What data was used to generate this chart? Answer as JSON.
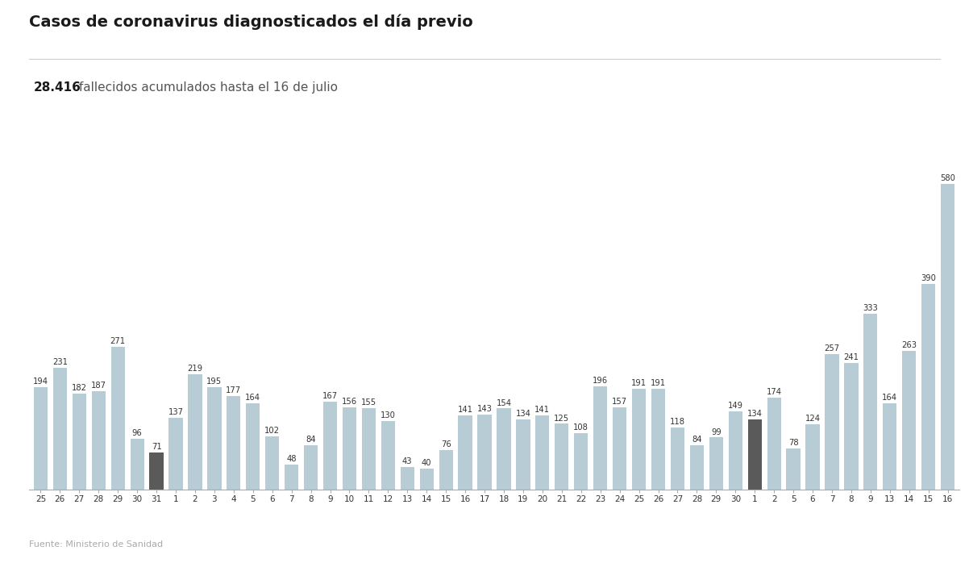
{
  "title": "Casos de coronavirus diagnosticados el día previo",
  "subtitle_bold": "28.416",
  "subtitle_rest": " fallecidos acumulados hasta el 16 de julio",
  "source": "Fuente: Ministerio de Sanidad",
  "labels": [
    "25",
    "26",
    "27",
    "28",
    "29",
    "30",
    "31",
    "1",
    "2",
    "3",
    "4",
    "5",
    "6",
    "7",
    "8",
    "9",
    "10",
    "11",
    "12",
    "13",
    "14",
    "15",
    "16",
    "17",
    "18",
    "19",
    "20",
    "21",
    "22",
    "23",
    "24",
    "25",
    "26",
    "27",
    "28",
    "29",
    "30",
    "1",
    "2",
    "5",
    "6",
    "7",
    "8",
    "9",
    "13",
    "14",
    "15",
    "16"
  ],
  "values": [
    194,
    231,
    182,
    187,
    271,
    96,
    71,
    137,
    219,
    195,
    177,
    164,
    102,
    48,
    84,
    167,
    156,
    155,
    130,
    43,
    40,
    76,
    141,
    143,
    154,
    134,
    141,
    125,
    108,
    196,
    157,
    191,
    191,
    118,
    84,
    99,
    149,
    134,
    174,
    78,
    124,
    257,
    241,
    333,
    164,
    263,
    390,
    580
  ],
  "dark_bars": [
    6,
    37
  ],
  "normal_bar_color": "#b8ccd6",
  "dark_bar_color": "#5a5a5a",
  "background_color": "#ffffff",
  "ylim": [
    0,
    640
  ],
  "grid_color": "#d8d8d8",
  "title_fontsize": 14,
  "subtitle_fontsize": 11,
  "label_fontsize": 7.2,
  "tick_fontsize": 7.5,
  "month_fontsize": 13,
  "mayo_range": [
    0,
    7
  ],
  "junio_range": [
    7,
    37
  ],
  "julio_range": [
    37,
    48
  ]
}
